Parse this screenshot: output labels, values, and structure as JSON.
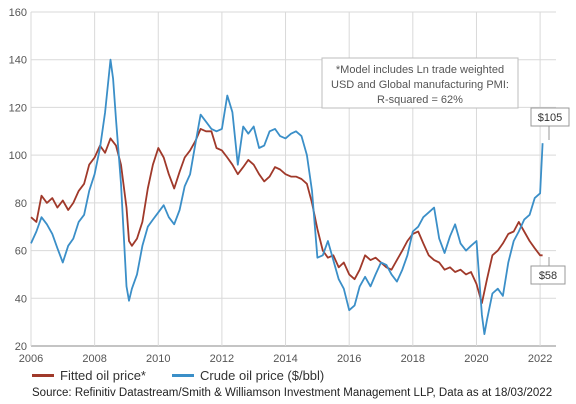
{
  "chart_data": {
    "type": "line",
    "xlim": [
      2006,
      2022.5
    ],
    "ylim": [
      20,
      160
    ],
    "x_ticks": [
      2006,
      2008,
      2010,
      2012,
      2014,
      2016,
      2018,
      2020,
      2022
    ],
    "y_ticks": [
      20,
      40,
      60,
      80,
      100,
      120,
      140,
      160
    ],
    "grid": true,
    "legend_position": "bottom",
    "annotation": {
      "lines": [
        "*Model includes Ln trade weighted",
        "USD and Global manufacturing PMI:",
        "R-squared = 62%"
      ]
    },
    "callouts": [
      {
        "label": "$105",
        "x": 2022.08,
        "y": 105,
        "series": "Crude oil price ($/bbl)"
      },
      {
        "label": "$58",
        "x": 2022.08,
        "y": 58,
        "series": "Fitted oil price*"
      }
    ],
    "series": [
      {
        "name": "Fitted oil price*",
        "color": "#a0392a",
        "points": [
          [
            2006.0,
            74
          ],
          [
            2006.17,
            72
          ],
          [
            2006.33,
            83
          ],
          [
            2006.5,
            80
          ],
          [
            2006.67,
            82
          ],
          [
            2006.83,
            78
          ],
          [
            2007.0,
            81
          ],
          [
            2007.17,
            77
          ],
          [
            2007.33,
            80
          ],
          [
            2007.5,
            85
          ],
          [
            2007.67,
            88
          ],
          [
            2007.83,
            96
          ],
          [
            2008.0,
            99
          ],
          [
            2008.17,
            104
          ],
          [
            2008.33,
            101
          ],
          [
            2008.5,
            107
          ],
          [
            2008.67,
            104
          ],
          [
            2008.83,
            96
          ],
          [
            2009.0,
            78
          ],
          [
            2009.08,
            64
          ],
          [
            2009.17,
            62
          ],
          [
            2009.33,
            65
          ],
          [
            2009.5,
            72
          ],
          [
            2009.67,
            86
          ],
          [
            2009.83,
            96
          ],
          [
            2010.0,
            103
          ],
          [
            2010.17,
            99
          ],
          [
            2010.33,
            92
          ],
          [
            2010.5,
            86
          ],
          [
            2010.67,
            93
          ],
          [
            2010.83,
            99
          ],
          [
            2011.0,
            102
          ],
          [
            2011.17,
            106
          ],
          [
            2011.33,
            111
          ],
          [
            2011.5,
            110
          ],
          [
            2011.67,
            110
          ],
          [
            2011.83,
            103
          ],
          [
            2012.0,
            102
          ],
          [
            2012.17,
            99
          ],
          [
            2012.33,
            96
          ],
          [
            2012.5,
            92
          ],
          [
            2012.67,
            95
          ],
          [
            2012.83,
            98
          ],
          [
            2013.0,
            96
          ],
          [
            2013.17,
            92
          ],
          [
            2013.33,
            89
          ],
          [
            2013.5,
            91
          ],
          [
            2013.67,
            95
          ],
          [
            2013.83,
            94
          ],
          [
            2014.0,
            92
          ],
          [
            2014.17,
            91
          ],
          [
            2014.33,
            91
          ],
          [
            2014.5,
            90
          ],
          [
            2014.67,
            88
          ],
          [
            2014.83,
            80
          ],
          [
            2015.0,
            69
          ],
          [
            2015.17,
            60
          ],
          [
            2015.33,
            57
          ],
          [
            2015.5,
            58
          ],
          [
            2015.67,
            53
          ],
          [
            2015.83,
            55
          ],
          [
            2016.0,
            50
          ],
          [
            2016.17,
            48
          ],
          [
            2016.33,
            52
          ],
          [
            2016.5,
            58
          ],
          [
            2016.67,
            56
          ],
          [
            2016.83,
            57
          ],
          [
            2017.0,
            55
          ],
          [
            2017.17,
            53
          ],
          [
            2017.33,
            52
          ],
          [
            2017.5,
            56
          ],
          [
            2017.67,
            60
          ],
          [
            2017.83,
            64
          ],
          [
            2018.0,
            67
          ],
          [
            2018.17,
            68
          ],
          [
            2018.33,
            63
          ],
          [
            2018.5,
            58
          ],
          [
            2018.67,
            56
          ],
          [
            2018.83,
            55
          ],
          [
            2019.0,
            52
          ],
          [
            2019.17,
            53
          ],
          [
            2019.33,
            51
          ],
          [
            2019.5,
            52
          ],
          [
            2019.67,
            50
          ],
          [
            2019.83,
            51
          ],
          [
            2020.0,
            46
          ],
          [
            2020.17,
            38
          ],
          [
            2020.33,
            48
          ],
          [
            2020.5,
            58
          ],
          [
            2020.67,
            60
          ],
          [
            2020.83,
            63
          ],
          [
            2021.0,
            67
          ],
          [
            2021.17,
            68
          ],
          [
            2021.33,
            72
          ],
          [
            2021.5,
            68
          ],
          [
            2021.67,
            64
          ],
          [
            2021.83,
            61
          ],
          [
            2022.0,
            58
          ],
          [
            2022.08,
            58
          ]
        ]
      },
      {
        "name": "Crude oil price ($/bbl)",
        "color": "#3b8fc8",
        "points": [
          [
            2006.0,
            63
          ],
          [
            2006.17,
            68
          ],
          [
            2006.33,
            74
          ],
          [
            2006.5,
            71
          ],
          [
            2006.67,
            67
          ],
          [
            2006.83,
            61
          ],
          [
            2007.0,
            55
          ],
          [
            2007.17,
            62
          ],
          [
            2007.33,
            65
          ],
          [
            2007.5,
            72
          ],
          [
            2007.67,
            75
          ],
          [
            2007.83,
            85
          ],
          [
            2008.0,
            92
          ],
          [
            2008.17,
            103
          ],
          [
            2008.33,
            118
          ],
          [
            2008.5,
            140
          ],
          [
            2008.58,
            132
          ],
          [
            2008.67,
            115
          ],
          [
            2008.83,
            88
          ],
          [
            2009.0,
            45
          ],
          [
            2009.08,
            39
          ],
          [
            2009.17,
            44
          ],
          [
            2009.33,
            50
          ],
          [
            2009.5,
            62
          ],
          [
            2009.67,
            70
          ],
          [
            2009.83,
            73
          ],
          [
            2010.0,
            76
          ],
          [
            2010.17,
            79
          ],
          [
            2010.33,
            74
          ],
          [
            2010.5,
            71
          ],
          [
            2010.67,
            77
          ],
          [
            2010.83,
            87
          ],
          [
            2011.0,
            92
          ],
          [
            2011.17,
            105
          ],
          [
            2011.33,
            117
          ],
          [
            2011.5,
            114
          ],
          [
            2011.67,
            111
          ],
          [
            2011.83,
            110
          ],
          [
            2012.0,
            111
          ],
          [
            2012.17,
            125
          ],
          [
            2012.33,
            118
          ],
          [
            2012.5,
            96
          ],
          [
            2012.67,
            112
          ],
          [
            2012.83,
            109
          ],
          [
            2013.0,
            112
          ],
          [
            2013.17,
            103
          ],
          [
            2013.33,
            104
          ],
          [
            2013.5,
            110
          ],
          [
            2013.67,
            111
          ],
          [
            2013.83,
            108
          ],
          [
            2014.0,
            107
          ],
          [
            2014.17,
            109
          ],
          [
            2014.33,
            110
          ],
          [
            2014.5,
            108
          ],
          [
            2014.67,
            100
          ],
          [
            2014.83,
            85
          ],
          [
            2015.0,
            57
          ],
          [
            2015.17,
            58
          ],
          [
            2015.33,
            64
          ],
          [
            2015.5,
            56
          ],
          [
            2015.67,
            48
          ],
          [
            2015.83,
            44
          ],
          [
            2016.0,
            35
          ],
          [
            2016.17,
            37
          ],
          [
            2016.33,
            45
          ],
          [
            2016.5,
            49
          ],
          [
            2016.67,
            45
          ],
          [
            2016.83,
            50
          ],
          [
            2017.0,
            55
          ],
          [
            2017.17,
            54
          ],
          [
            2017.33,
            50
          ],
          [
            2017.5,
            47
          ],
          [
            2017.67,
            52
          ],
          [
            2017.83,
            58
          ],
          [
            2018.0,
            68
          ],
          [
            2018.17,
            70
          ],
          [
            2018.33,
            74
          ],
          [
            2018.5,
            76
          ],
          [
            2018.67,
            78
          ],
          [
            2018.83,
            65
          ],
          [
            2019.0,
            59
          ],
          [
            2019.17,
            66
          ],
          [
            2019.33,
            71
          ],
          [
            2019.5,
            63
          ],
          [
            2019.67,
            60
          ],
          [
            2019.83,
            62
          ],
          [
            2020.0,
            64
          ],
          [
            2020.17,
            33
          ],
          [
            2020.25,
            25
          ],
          [
            2020.33,
            31
          ],
          [
            2020.5,
            42
          ],
          [
            2020.67,
            44
          ],
          [
            2020.83,
            41
          ],
          [
            2021.0,
            55
          ],
          [
            2021.17,
            64
          ],
          [
            2021.33,
            68
          ],
          [
            2021.5,
            73
          ],
          [
            2021.67,
            75
          ],
          [
            2021.83,
            82
          ],
          [
            2022.0,
            84
          ],
          [
            2022.08,
            105
          ]
        ]
      }
    ]
  },
  "source_text": "Source: Refinitiv Datastream/Smith & Williamson Investment Management LLP, Data as at 18/03/2022"
}
